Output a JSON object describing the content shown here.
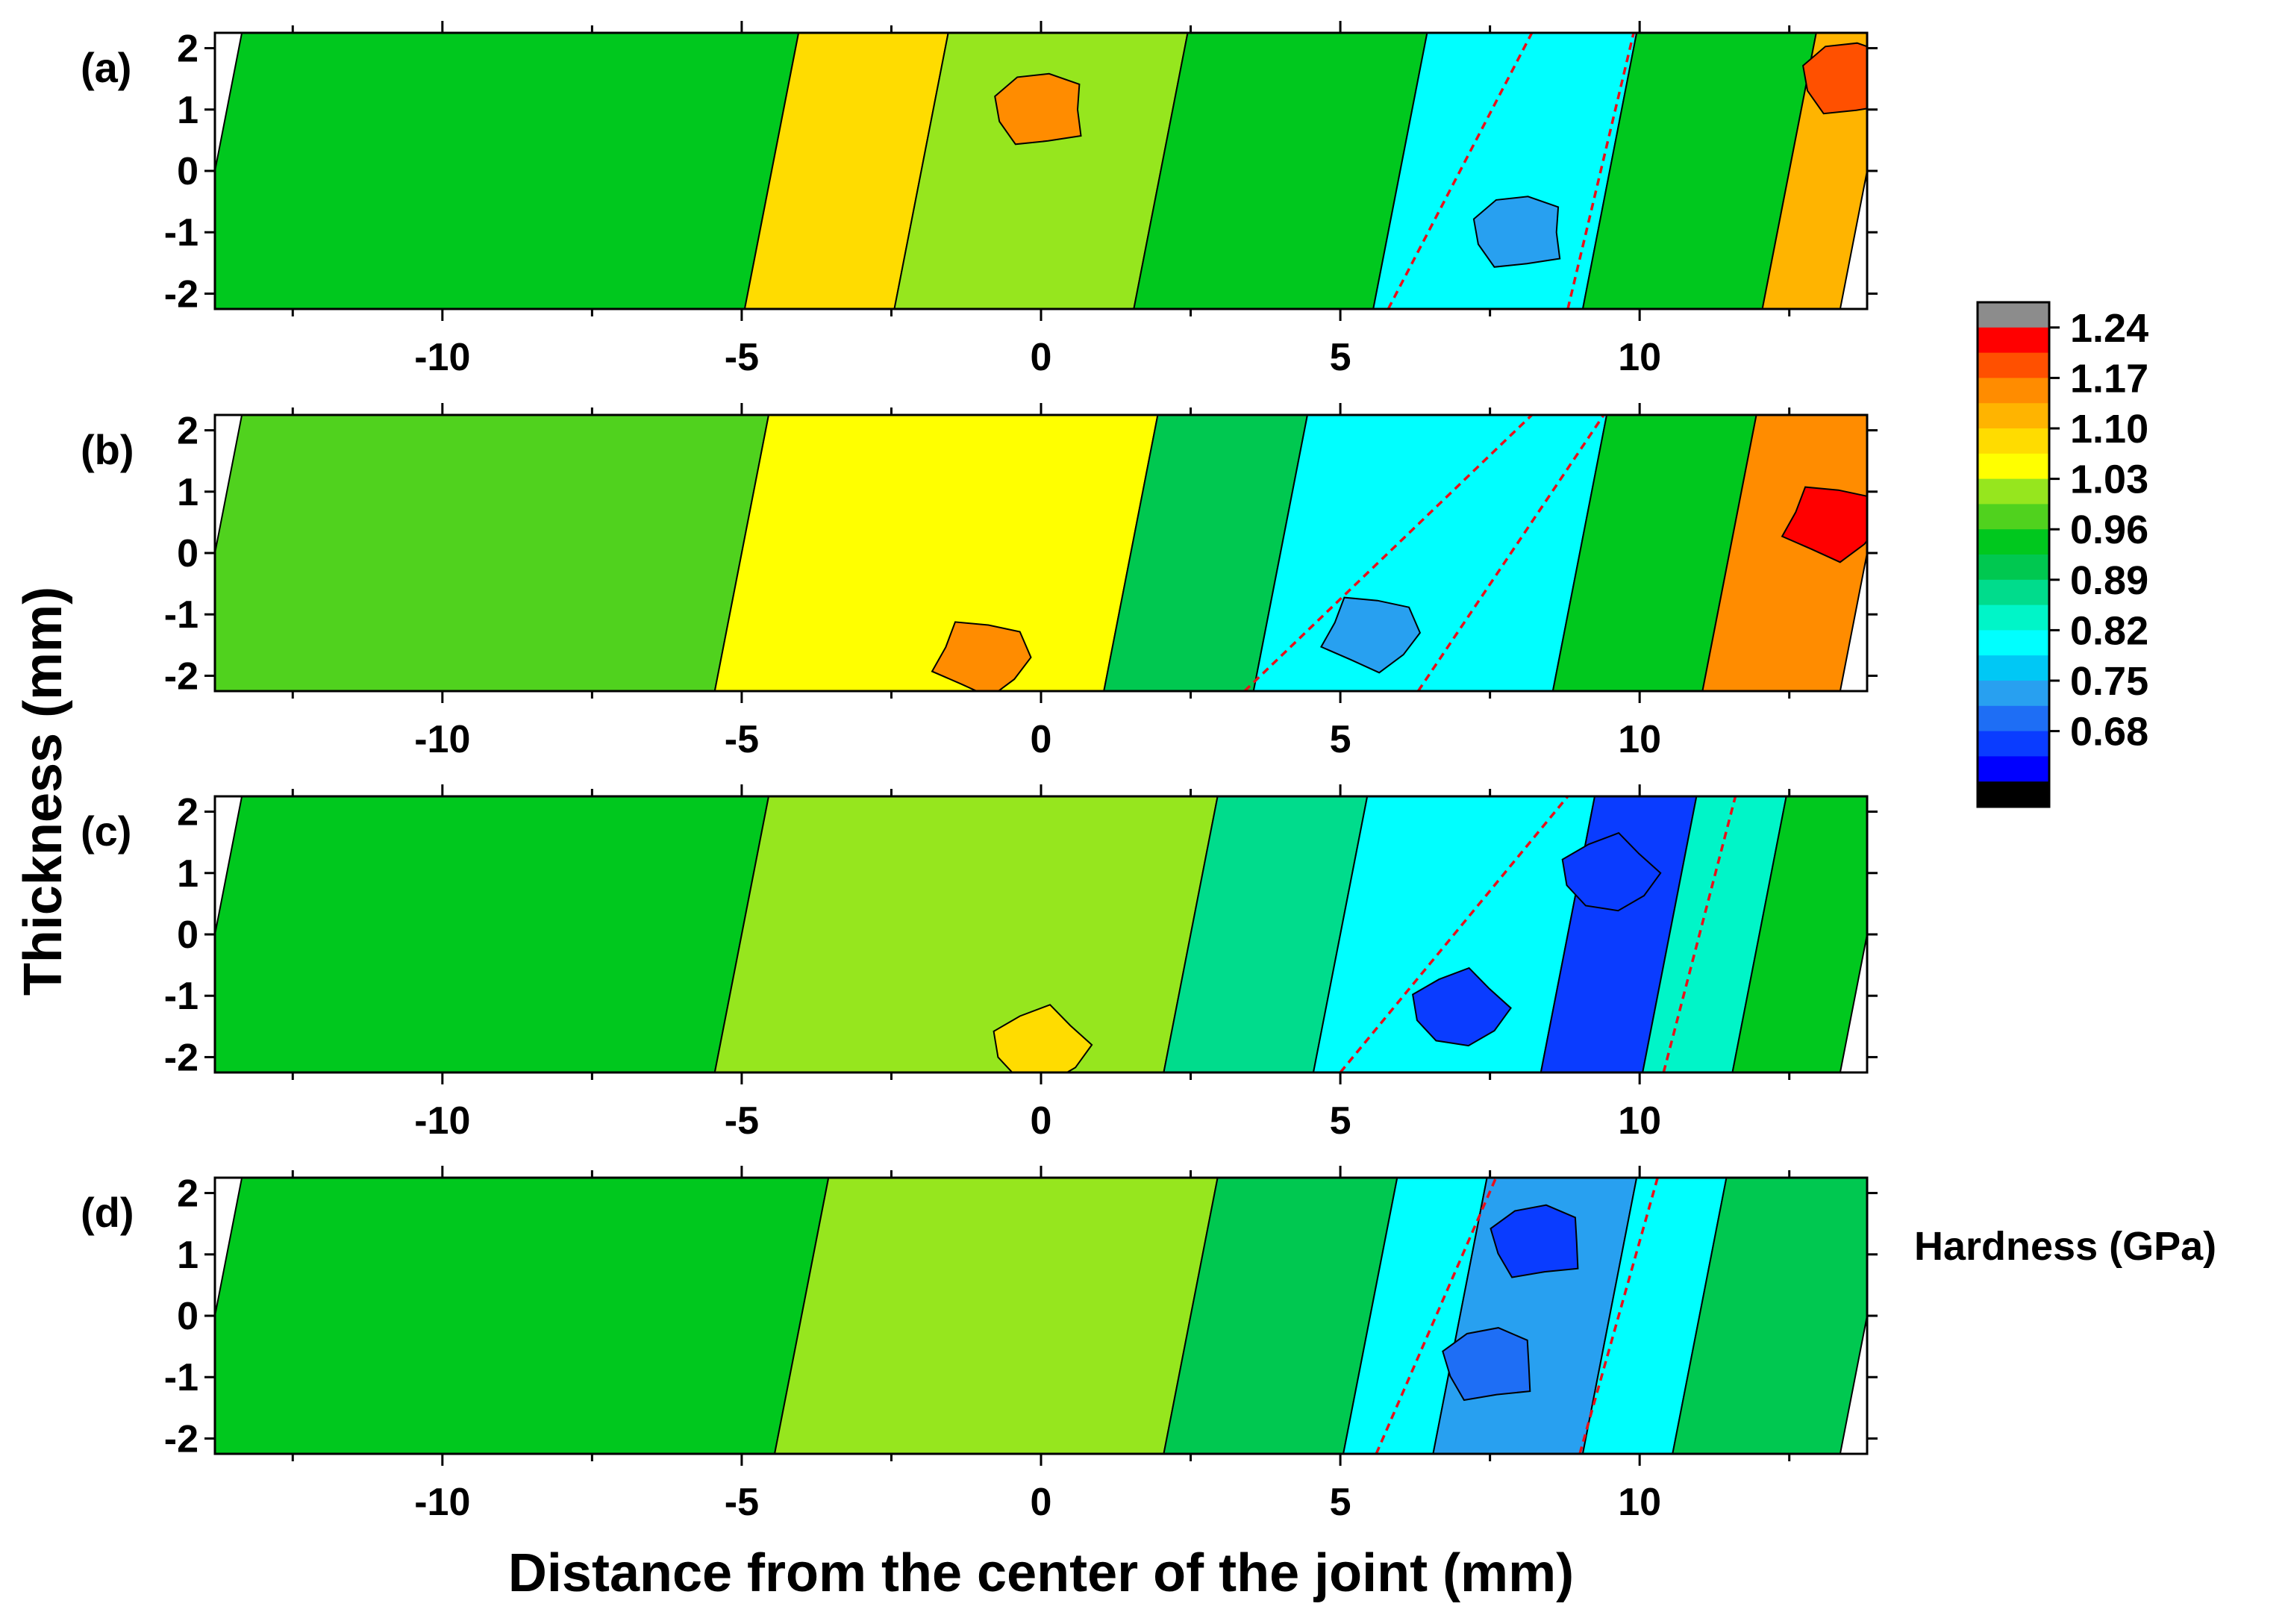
{
  "chart_data": {
    "type": "heatmap",
    "xlabel": "Distance from the center of the joint (mm)",
    "ylabel": "Thickness (mm)",
    "xlim": [
      -13.8,
      13.8
    ],
    "ylim": [
      -2.25,
      2.25
    ],
    "xticks": [
      -10,
      -5,
      0,
      5,
      10
    ],
    "yticks": [
      2,
      1,
      0,
      -1,
      -2
    ],
    "colorbar": {
      "title": "Hardness (GPa)",
      "range": [
        0.68,
        1.24
      ],
      "labeled_ticks": [
        "1.24",
        "1.17",
        "1.10",
        "1.03",
        "0.96",
        "0.89",
        "0.82",
        "0.75",
        "0.68"
      ],
      "levels": [
        {
          "color": "#000000"
        },
        {
          "color": "#0000ff"
        },
        {
          "color": "#0a3cff"
        },
        {
          "color": "#1e6ef5"
        },
        {
          "color": "#28a0f0"
        },
        {
          "color": "#00c8f5"
        },
        {
          "color": "#00ffff"
        },
        {
          "color": "#00f5c8"
        },
        {
          "color": "#00dc8c"
        },
        {
          "color": "#00c850"
        },
        {
          "color": "#00c81e"
        },
        {
          "color": "#50d21e"
        },
        {
          "color": "#96e61e"
        },
        {
          "color": "#ffff00"
        },
        {
          "color": "#ffdc00"
        },
        {
          "color": "#ffb400"
        },
        {
          "color": "#ff8c00"
        },
        {
          "color": "#ff5000"
        },
        {
          "color": "#ff0000"
        },
        {
          "color": "#8c8c8c"
        }
      ]
    },
    "panels": [
      {
        "label": "(a)",
        "zones": [
          {
            "x0": -13.8,
            "x1": -4.5,
            "value": 0.99
          },
          {
            "x0": -4.5,
            "x1": -2.0,
            "value": 1.09
          },
          {
            "x0": -2.0,
            "x1": 2.0,
            "value": 1.05
          },
          {
            "x0": 2.0,
            "x1": 6.0,
            "value": 0.97
          },
          {
            "x0": 6.0,
            "x1": 9.5,
            "value": 0.84
          },
          {
            "x0": 9.5,
            "x1": 12.5,
            "value": 0.97
          },
          {
            "x0": 12.5,
            "x1": 13.8,
            "value": 1.13
          }
        ],
        "patches": [
          {
            "x": 0.0,
            "y": 1.0,
            "value": 1.16
          },
          {
            "x": 8.0,
            "y": -1.0,
            "value": 0.78
          },
          {
            "x": 13.5,
            "y": 1.5,
            "value": 1.18
          }
        ],
        "boundary_lines": [
          {
            "x_bottom": 5.8,
            "x_top": 8.2
          },
          {
            "x_bottom": 8.8,
            "x_top": 9.9
          }
        ]
      },
      {
        "label": "(b)",
        "zones": [
          {
            "x0": -13.8,
            "x1": -5.0,
            "value": 1.01
          },
          {
            "x0": -5.0,
            "x1": 1.5,
            "value": 1.07
          },
          {
            "x0": 1.5,
            "x1": 4.0,
            "value": 0.95
          },
          {
            "x0": 4.0,
            "x1": 9.0,
            "value": 0.85
          },
          {
            "x0": 9.0,
            "x1": 11.5,
            "value": 0.97
          },
          {
            "x0": 11.5,
            "x1": 13.8,
            "value": 1.17
          }
        ],
        "patches": [
          {
            "x": -1.0,
            "y": -1.7,
            "value": 1.15
          },
          {
            "x": 5.5,
            "y": -1.3,
            "value": 0.8
          },
          {
            "x": 13.2,
            "y": 0.5,
            "value": 1.21
          }
        ],
        "boundary_lines": [
          {
            "x_bottom": 3.4,
            "x_top": 8.2
          },
          {
            "x_bottom": 6.3,
            "x_top": 9.4
          }
        ]
      },
      {
        "label": "(c)",
        "zones": [
          {
            "x0": -13.8,
            "x1": -5.0,
            "value": 0.98
          },
          {
            "x0": -5.0,
            "x1": 2.5,
            "value": 1.04
          },
          {
            "x0": 2.5,
            "x1": 5.0,
            "value": 0.91
          },
          {
            "x0": 5.0,
            "x1": 8.8,
            "value": 0.84
          },
          {
            "x0": 8.8,
            "x1": 10.5,
            "value": 0.74
          },
          {
            "x0": 10.5,
            "x1": 12.0,
            "value": 0.88
          },
          {
            "x0": 12.0,
            "x1": 13.8,
            "value": 0.97
          }
        ],
        "patches": [
          {
            "x": 7.0,
            "y": -1.2,
            "value": 0.73
          },
          {
            "x": 9.5,
            "y": 1.0,
            "value": 0.72
          },
          {
            "x": 0.0,
            "y": -1.8,
            "value": 1.11
          }
        ],
        "boundary_lines": [
          {
            "x_bottom": 5.0,
            "x_top": 8.8
          },
          {
            "x_bottom": 10.4,
            "x_top": 11.6
          }
        ]
      },
      {
        "label": "(d)",
        "zones": [
          {
            "x0": -13.8,
            "x1": -4.0,
            "value": 0.98
          },
          {
            "x0": -4.0,
            "x1": 2.5,
            "value": 1.04
          },
          {
            "x0": 2.5,
            "x1": 5.5,
            "value": 0.95
          },
          {
            "x0": 5.5,
            "x1": 7.0,
            "value": 0.86
          },
          {
            "x0": 7.0,
            "x1": 9.5,
            "value": 0.78
          },
          {
            "x0": 9.5,
            "x1": 11.0,
            "value": 0.86
          },
          {
            "x0": 11.0,
            "x1": 13.8,
            "value": 0.96
          }
        ],
        "patches": [
          {
            "x": 8.3,
            "y": 1.2,
            "value": 0.73
          },
          {
            "x": 7.5,
            "y": -0.8,
            "value": 0.76
          }
        ],
        "boundary_lines": [
          {
            "x_bottom": 5.6,
            "x_top": 7.6
          },
          {
            "x_bottom": 9.0,
            "x_top": 10.3
          }
        ]
      }
    ]
  }
}
